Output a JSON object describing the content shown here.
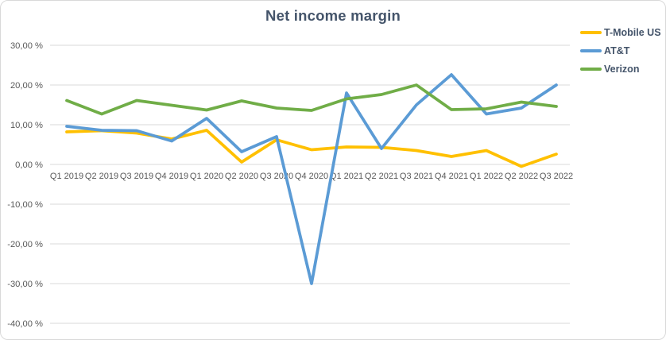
{
  "chart_data": {
    "type": "line",
    "title": "Net income margin",
    "categories": [
      "Q1 2019",
      "Q2 2019",
      "Q3 2019",
      "Q4 2019",
      "Q1 2020",
      "Q2 2020",
      "Q3 2020",
      "Q4 2020",
      "Q1 2021",
      "Q2 2021",
      "Q3 2021",
      "Q4 2021",
      "Q1 2022",
      "Q2 2022",
      "Q3 2022"
    ],
    "series": [
      {
        "name": "T-Mobile US",
        "color": "#FFC000",
        "values": [
          8.2,
          8.5,
          7.9,
          6.4,
          8.6,
          0.6,
          6.2,
          3.7,
          4.4,
          4.3,
          3.5,
          2.0,
          3.5,
          -0.5,
          2.6
        ]
      },
      {
        "name": "AT&T",
        "color": "#5B9BD5",
        "values": [
          9.6,
          8.6,
          8.5,
          5.9,
          11.6,
          3.2,
          7.0,
          -30.0,
          18.0,
          4.0,
          15.0,
          22.6,
          12.7,
          14.2,
          20.0
        ]
      },
      {
        "name": "Verizon",
        "color": "#70AD47",
        "values": [
          16.1,
          12.7,
          16.1,
          14.9,
          13.7,
          16.0,
          14.2,
          13.6,
          16.5,
          17.6,
          20.0,
          13.8,
          14.0,
          15.7,
          14.6
        ]
      }
    ],
    "y_axis": {
      "unit": "%",
      "min": -40,
      "max": 30,
      "ticks": [
        {
          "label": "30,00 %",
          "value": 30
        },
        {
          "label": "20,00 %",
          "value": 20
        },
        {
          "label": "10,00 %",
          "value": 10
        },
        {
          "label": "0,00 %",
          "value": 0
        },
        {
          "label": "-10,00 %",
          "value": -10
        },
        {
          "label": "-20,00 %",
          "value": -20
        },
        {
          "label": "-30,00 %",
          "value": -30
        },
        {
          "label": "-40,00 %",
          "value": -40
        }
      ]
    },
    "grid": "horizontal",
    "legend_position": "top-right",
    "palette": {
      "title_color": "#44546A",
      "legend_text_color": "#44546A",
      "axis_label_color": "#595959",
      "gridline_color": "#D9D9D9",
      "frame_border_color": "#D9D9D9",
      "background": "#FFFFFF"
    }
  }
}
